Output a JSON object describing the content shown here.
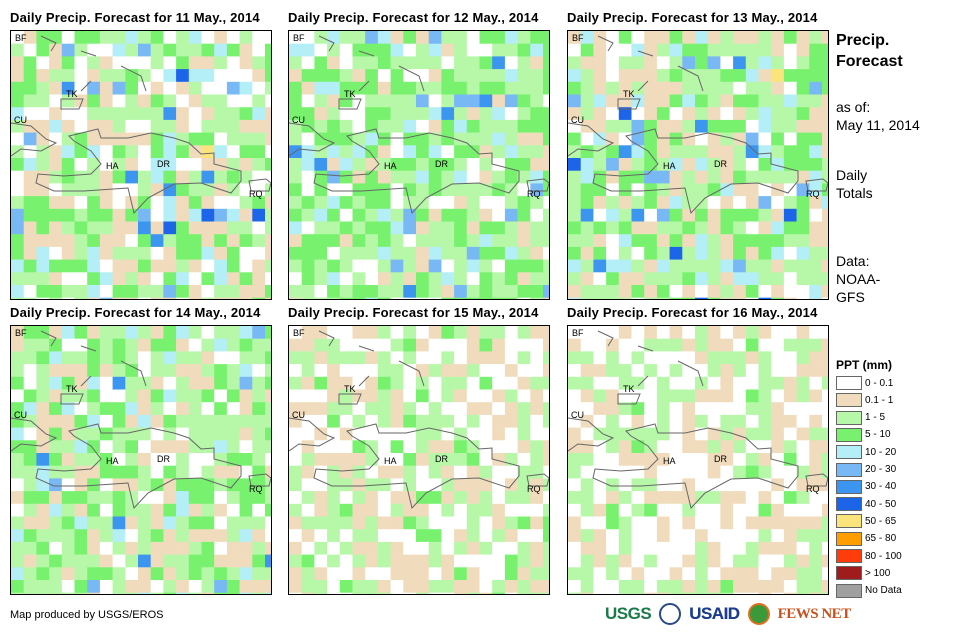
{
  "panels": [
    {
      "title": "Daily Precip. Forecast for 11 May., 2014"
    },
    {
      "title": "Daily Precip. Forecast for 12 May., 2014"
    },
    {
      "title": "Daily Precip. Forecast for 13 May., 2014"
    },
    {
      "title": "Daily Precip. Forecast for 14 May., 2014"
    },
    {
      "title": "Daily Precip. Forecast for 15 May., 2014"
    },
    {
      "title": "Daily Precip. Forecast for 16 May., 2014"
    }
  ],
  "map_labels": [
    "BF",
    "TK",
    "CU",
    "HA",
    "DR",
    "RQ"
  ],
  "side": {
    "title1": "Precip.",
    "title2": "Forecast",
    "asof_label": "as of:",
    "asof_date": "May 11, 2014",
    "totals1": "Daily",
    "totals2": "Totals",
    "data1": "Data:",
    "data2": "NOAA-",
    "data3": "GFS"
  },
  "legend": {
    "title": "PPT (mm)",
    "items": [
      {
        "label": "0 - 0.1",
        "color": "#ffffff"
      },
      {
        "label": "0.1 - 1",
        "color": "#f0dcbc"
      },
      {
        "label": "1 - 5",
        "color": "#b6f7a8"
      },
      {
        "label": "5 - 10",
        "color": "#78f26e"
      },
      {
        "label": "10 - 20",
        "color": "#b4eef6"
      },
      {
        "label": "20 - 30",
        "color": "#78b8f4"
      },
      {
        "label": "30 - 40",
        "color": "#3c96f0"
      },
      {
        "label": "40 - 50",
        "color": "#1c64e8"
      },
      {
        "label": "50 - 65",
        "color": "#fce47c"
      },
      {
        "label": "65 - 80",
        "color": "#ff9e00"
      },
      {
        "label": "80 - 100",
        "color": "#ff3c0c"
      },
      {
        "label": "> 100",
        "color": "#a01c1c"
      },
      {
        "label": "No Data",
        "color": "#a0a0a0"
      }
    ]
  },
  "footer": {
    "credit": "Map produced by USGS/EROS"
  },
  "logos": {
    "usgs": "USGS",
    "usaid": "USAID",
    "fewsnet": "FEWS NET"
  }
}
